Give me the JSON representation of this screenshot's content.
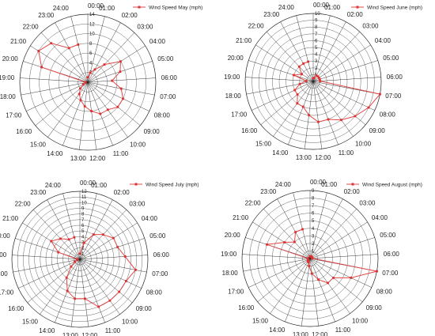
{
  "chart_data": [
    {
      "type": "radar",
      "categories": [
        "00:00",
        "01:00",
        "02:00",
        "03:00",
        "04:00",
        "05:00",
        "06:00",
        "07:00",
        "08:00",
        "09:00",
        "10:00",
        "11:00",
        "12:00",
        "13:00",
        "14:00",
        "15:00",
        "16:00",
        "17:00",
        "18:00",
        "19:00",
        "20:00",
        "21:00",
        "22:00",
        "23:00",
        "24:00"
      ],
      "radial_ticks": [
        "0",
        "2",
        "4",
        "6",
        "8",
        "10",
        "12",
        "14"
      ],
      "rmax": 14,
      "series": [
        {
          "name": "Wind Speed May (mph)",
          "values": [
            1,
            2,
            3,
            5,
            8,
            7,
            5,
            7,
            8,
            8,
            7,
            7,
            6,
            5,
            4,
            3,
            2,
            1,
            0.5,
            0.5,
            10,
            12,
            11,
            8,
            8
          ]
        }
      ],
      "legend_position": "top-right"
    },
    {
      "type": "radar",
      "categories": [
        "00:00",
        "01:00",
        "02:00",
        "03:00",
        "04:00",
        "05:00",
        "06:00",
        "07:00",
        "08:00",
        "09:00",
        "10:00",
        "11:00",
        "12:00",
        "13:00",
        "14:00",
        "15:00",
        "16:00",
        "17:00",
        "18:00",
        "19:00",
        "20:00",
        "21:00",
        "22:00",
        "23:00",
        "24:00"
      ],
      "radial_ticks": [
        "0",
        "1",
        "2",
        "3",
        "4",
        "5",
        "6",
        "7",
        "8",
        "9",
        "10"
      ],
      "rmax": 10,
      "series": [
        {
          "name": "Wind Speed June (mph)",
          "values": [
            0.5,
            0.5,
            1,
            1,
            1,
            1,
            1,
            10,
            9,
            8,
            7,
            6,
            6,
            5,
            4,
            4,
            3,
            3,
            2,
            1,
            3,
            2,
            3,
            3,
            3
          ]
        }
      ],
      "legend_position": "top-right"
    },
    {
      "type": "radar",
      "categories": [
        "00:00",
        "01:00",
        "02:00",
        "03:00",
        "04:00",
        "05:00",
        "06:00",
        "07:00",
        "08:00",
        "09:00",
        "10:00",
        "11:00",
        "12:00",
        "13:00",
        "14:00",
        "15:00",
        "16:00",
        "17:00",
        "18:00",
        "19:00",
        "20:00",
        "21:00",
        "22:00",
        "23:00",
        "24:00"
      ],
      "radial_ticks": [
        "0",
        "1",
        "2",
        "3",
        "4",
        "5",
        "6",
        "7",
        "8",
        "9",
        "10",
        "11",
        "12"
      ],
      "rmax": 12,
      "series": [
        {
          "name": "Wind Speed July (mph)",
          "values": [
            1,
            3,
            5,
            6,
            7,
            7,
            8,
            10,
            9,
            9,
            9,
            9,
            7,
            7,
            6,
            4,
            2,
            1,
            0.5,
            0.5,
            4,
            6,
            5,
            4,
            4
          ]
        }
      ],
      "legend_position": "top-right"
    },
    {
      "type": "radar",
      "categories": [
        "00:00",
        "01:00",
        "02:00",
        "03:00",
        "04:00",
        "05:00",
        "06:00",
        "07:00",
        "08:00",
        "09:00",
        "10:00",
        "11:00",
        "12:00",
        "13:00",
        "14:00",
        "15:00",
        "16:00",
        "17:00",
        "18:00",
        "19:00",
        "20:00",
        "21:00",
        "22:00",
        "23:00",
        "24:00"
      ],
      "radial_ticks": [
        "0",
        "1",
        "2",
        "3",
        "4",
        "5",
        "6",
        "7",
        "8",
        "9"
      ],
      "rmax": 9,
      "series": [
        {
          "name": "Wind Speed August (mph)",
          "values": [
            0.3,
            0.3,
            0.3,
            0.3,
            0.3,
            0.3,
            0.3,
            9,
            6,
            4,
            4,
            3,
            2,
            1,
            0.5,
            0.5,
            0.3,
            0.3,
            0.3,
            0.3,
            6,
            4,
            3,
            4,
            4
          ]
        }
      ],
      "legend_position": "top-right"
    }
  ],
  "colors": {
    "series": "#e04848",
    "marker": "#e03030",
    "grid": "#222222"
  }
}
